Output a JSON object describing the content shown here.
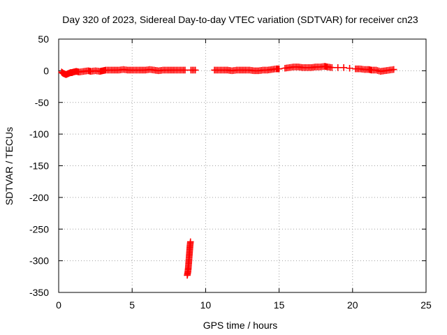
{
  "chart_data": {
    "type": "scatter",
    "title": "Day 320 of 2023, Sidereal Day-to-day VTEC variation (SDTVAR) for receiver cn23",
    "xlabel": "GPS time / hours",
    "ylabel": "SDTVAR / TECUs",
    "xlim": [
      0,
      25
    ],
    "ylim": [
      -350,
      50
    ],
    "xticks": [
      "0",
      "5",
      "10",
      "15",
      "20",
      "25"
    ],
    "yticks": [
      "50",
      "0",
      "-50",
      "-100",
      "-150",
      "-200",
      "-250",
      "-300",
      "-350"
    ],
    "grid": true,
    "marker": "plus",
    "color": "#ff0000",
    "series": [
      {
        "name": "SDTVAR",
        "points": [
          [
            0.2,
            -2
          ],
          [
            0.3,
            -4
          ],
          [
            0.4,
            -5
          ],
          [
            0.5,
            -6
          ],
          [
            0.6,
            -5
          ],
          [
            0.7,
            -4
          ],
          [
            0.8,
            -3
          ],
          [
            0.9,
            -3
          ],
          [
            1.0,
            -2
          ],
          [
            1.2,
            -1
          ],
          [
            1.4,
            -2
          ],
          [
            1.7,
            -1
          ],
          [
            2.0,
            0
          ],
          [
            2.2,
            -1
          ],
          [
            2.5,
            0
          ],
          [
            2.8,
            -1
          ],
          [
            3.0,
            0
          ],
          [
            3.2,
            1
          ],
          [
            3.5,
            1
          ],
          [
            3.8,
            1
          ],
          [
            4.1,
            1
          ],
          [
            4.4,
            2
          ],
          [
            4.7,
            1
          ],
          [
            5.0,
            1
          ],
          [
            5.3,
            1
          ],
          [
            5.6,
            1
          ],
          [
            5.9,
            1
          ],
          [
            6.2,
            2
          ],
          [
            6.5,
            1
          ],
          [
            6.8,
            0
          ],
          [
            7.1,
            1
          ],
          [
            7.4,
            1
          ],
          [
            7.7,
            1
          ],
          [
            8.0,
            1
          ],
          [
            8.3,
            1
          ],
          [
            8.6,
            1
          ],
          [
            8.75,
            -323
          ],
          [
            8.79,
            -318
          ],
          [
            8.82,
            -312
          ],
          [
            8.84,
            -306
          ],
          [
            8.86,
            -300
          ],
          [
            8.88,
            -294
          ],
          [
            8.9,
            -288
          ],
          [
            8.92,
            -282
          ],
          [
            8.94,
            -276
          ],
          [
            8.97,
            -270
          ],
          [
            9.0,
            1
          ],
          [
            9.3,
            1
          ],
          [
            10.6,
            1
          ],
          [
            10.9,
            1
          ],
          [
            11.2,
            1
          ],
          [
            11.5,
            1
          ],
          [
            11.8,
            0
          ],
          [
            12.1,
            1
          ],
          [
            12.4,
            1
          ],
          [
            12.7,
            1
          ],
          [
            13.0,
            1
          ],
          [
            13.3,
            0
          ],
          [
            13.6,
            0
          ],
          [
            13.9,
            1
          ],
          [
            14.2,
            1
          ],
          [
            14.5,
            2
          ],
          [
            14.8,
            3
          ],
          [
            15.0,
            3
          ],
          [
            15.4,
            4
          ],
          [
            15.7,
            5
          ],
          [
            16.0,
            6
          ],
          [
            16.3,
            6
          ],
          [
            16.6,
            5
          ],
          [
            16.9,
            5
          ],
          [
            17.2,
            5
          ],
          [
            17.5,
            6
          ],
          [
            17.8,
            6
          ],
          [
            18.1,
            7
          ],
          [
            18.3,
            6
          ],
          [
            18.6,
            5
          ],
          [
            19.0,
            5
          ],
          [
            19.4,
            5
          ],
          [
            19.8,
            4
          ],
          [
            20.2,
            3
          ],
          [
            20.5,
            3
          ],
          [
            20.8,
            2
          ],
          [
            21.1,
            2
          ],
          [
            21.3,
            1
          ],
          [
            21.6,
            1
          ],
          [
            21.9,
            -1
          ],
          [
            22.2,
            0
          ],
          [
            22.5,
            1
          ],
          [
            22.8,
            2
          ]
        ]
      }
    ]
  }
}
